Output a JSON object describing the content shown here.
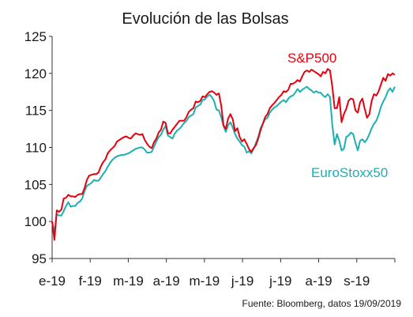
{
  "chart_data": {
    "type": "line",
    "title": "Evolución de las Bolsas",
    "source": "Fuente: Bloomberg, datos 19/09/2019",
    "ylim": [
      95,
      125
    ],
    "yticks": [
      95,
      100,
      105,
      110,
      115,
      120,
      125
    ],
    "x_month_labels": [
      "e-19",
      "f-19",
      "m-19",
      "a-19",
      "m-19",
      "j-19",
      "j-19",
      "a-19",
      "s-19"
    ],
    "grid": false,
    "colors": {
      "sp500": "#e8000e",
      "eurostoxx50": "#1bb0b2"
    },
    "series": [
      {
        "name": "S&P500",
        "key": "sp500",
        "values": [
          100,
          97.5,
          101.5,
          101.3,
          101.6,
          103.1,
          103.2,
          103.6,
          103.4,
          103.4,
          103.3,
          103.6,
          103.7,
          103.7,
          104.5,
          105.6,
          106.2,
          106.3,
          106.4,
          106.4,
          106.6,
          107.4,
          108.0,
          108.4,
          109.2,
          109.6,
          109.9,
          110.2,
          110.8,
          111.0,
          111.2,
          111.4,
          111.5,
          111.3,
          111.2,
          111.6,
          111.9,
          111.8,
          111.7,
          111.8,
          111.0,
          110.5,
          110.1,
          109.9,
          110.7,
          111.2,
          112.0,
          112.4,
          113.5,
          113.3,
          111.9,
          111.9,
          112.4,
          112.8,
          113.2,
          113.6,
          113.6,
          113.6,
          114.1,
          114.8,
          115.1,
          115.3,
          116.2,
          116.1,
          116.3,
          116.9,
          116.8,
          117.2,
          117.5,
          117.6,
          117.4,
          117.1,
          117.3,
          115.7,
          113.0,
          112.5,
          113.9,
          114.5,
          113.8,
          112.2,
          112.6,
          111.4,
          110.8,
          111.1,
          110.5,
          109.8,
          109.4,
          109.9,
          110.3,
          111.2,
          112.3,
          113.2,
          114.1,
          114.5,
          115.3,
          115.7,
          116.0,
          116.4,
          116.8,
          117.1,
          117.6,
          117.5,
          117.8,
          118.6,
          118.6,
          118.8,
          119.1,
          118.9,
          119.6,
          120.2,
          120.4,
          120.2,
          120.5,
          120.3,
          120.1,
          119.9,
          119.6,
          120.2,
          120.0,
          120.6,
          120.4,
          118.2,
          115.3,
          115.3,
          116.8,
          113.4,
          114.5,
          115.2,
          116.3,
          116.6,
          116.5,
          115.0,
          114.7,
          116.1,
          116.6,
          115.2,
          114.0,
          114.5,
          116.3,
          117.2,
          117.0,
          117.6,
          118.5,
          119.4,
          119.0,
          119.9,
          119.7,
          120.0,
          119.8
        ]
      },
      {
        "name": "EuroStoxx50",
        "key": "eurostoxx50",
        "values": [
          100,
          98.5,
          101.0,
          100.8,
          100.8,
          101.4,
          102.1,
          102.6,
          102.0,
          102.1,
          102.1,
          102.5,
          102.7,
          103.1,
          104.1,
          104.8,
          105.0,
          105.2,
          105.6,
          105.5,
          105.5,
          105.9,
          106.4,
          106.8,
          107.4,
          107.9,
          108.3,
          108.6,
          108.8,
          108.9,
          109.0,
          109.0,
          109.1,
          109.2,
          109.4,
          109.6,
          109.8,
          109.9,
          110.0,
          110.0,
          109.7,
          109.3,
          109.3,
          109.4,
          110.1,
          110.8,
          111.4,
          111.7,
          112.4,
          112.9,
          111.6,
          111.4,
          111.2,
          111.9,
          112.3,
          112.5,
          112.9,
          113.3,
          113.6,
          114.1,
          114.3,
          114.5,
          115.4,
          115.6,
          115.8,
          116.4,
          116.5,
          116.9,
          117.1,
          116.8,
          116.2,
          115.1,
          115.0,
          114.1,
          112.9,
          112.1,
          113.0,
          113.4,
          112.7,
          111.8,
          111.2,
          110.8,
          110.3,
          110.1,
          109.3,
          109.5,
          109.2,
          109.8,
          110.6,
          111.4,
          112.6,
          113.2,
          113.8,
          114.0,
          114.7,
          115.1,
          115.4,
          115.6,
          115.9,
          116.2,
          116.4,
          116.1,
          116.6,
          116.9,
          117.0,
          117.4,
          117.9,
          117.5,
          117.8,
          118.0,
          118.2,
          117.9,
          117.7,
          117.4,
          117.6,
          117.4,
          117.4,
          117.0,
          116.8,
          117.2,
          116.8,
          113.0,
          110.4,
          111.8,
          110.9,
          109.6,
          109.8,
          111.4,
          111.6,
          112.0,
          111.8,
          110.6,
          109.6,
          110.9,
          111.1,
          110.7,
          111.1,
          111.8,
          112.6,
          113.2,
          113.6,
          114.4,
          115.5,
          116.2,
          116.8,
          117.6,
          118.0,
          117.5,
          118.2
        ]
      }
    ]
  }
}
